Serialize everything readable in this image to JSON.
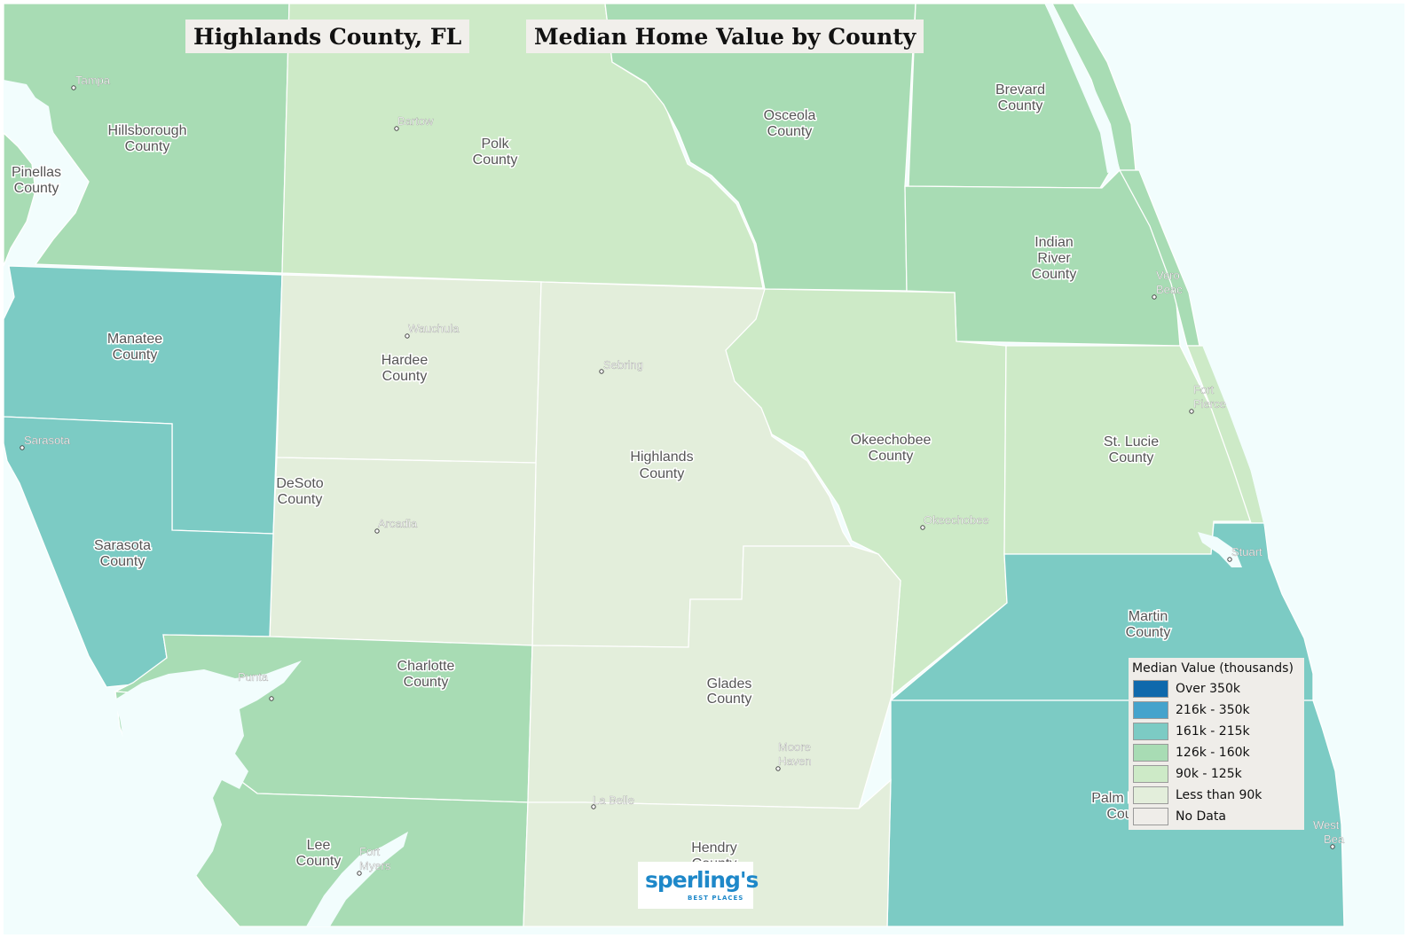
{
  "header": {
    "county_title": "Highlands County, FL",
    "map_title": "Median Home Value by County"
  },
  "legend": {
    "title": "Median Value (thousands)",
    "items": [
      {
        "label": "Over 350k",
        "color": "#0f69ac"
      },
      {
        "label": "216k - 350k",
        "color": "#45a3cc"
      },
      {
        "label": "161k - 215k",
        "color": "#7ccbc4"
      },
      {
        "label": "126k - 160k",
        "color": "#a8dcb4"
      },
      {
        "label": "90k - 125k",
        "color": "#cdeac7"
      },
      {
        "label": "Less than 90k",
        "color": "#e3eedb"
      },
      {
        "label": "No Data",
        "color": "#efede9"
      }
    ]
  },
  "colors": {
    "water": "#f2fdfd",
    "boundary": "#ffffff"
  },
  "counties": {
    "hillsborough": {
      "line1": "Hillsborough",
      "line2": "County"
    },
    "pinellas": {
      "line1": "Pinellas",
      "line2": "County"
    },
    "polk": {
      "line1": "Polk",
      "line2": "County"
    },
    "osceola": {
      "line1": "Osceola",
      "line2": "County"
    },
    "brevard": {
      "line1": "Brevard",
      "line2": "County"
    },
    "indian_river": {
      "line1": "Indian",
      "line2": "River",
      "line3": "County"
    },
    "manatee": {
      "line1": "Manatee",
      "line2": "County"
    },
    "hardee": {
      "line1": "Hardee",
      "line2": "County"
    },
    "highlands": {
      "line1": "Highlands",
      "line2": "County"
    },
    "okeechobee": {
      "line1": "Okeechobee",
      "line2": "County"
    },
    "st_lucie": {
      "line1": "St. Lucie",
      "line2": "County"
    },
    "desoto": {
      "line1": "DeSoto",
      "line2": "County"
    },
    "sarasota": {
      "line1": "Sarasota",
      "line2": "County"
    },
    "martin": {
      "line1": "Martin",
      "line2": "County"
    },
    "charlotte": {
      "line1": "Charlotte",
      "line2": "County"
    },
    "glades": {
      "line1": "Glades",
      "line2": "County"
    },
    "palm_beach": {
      "line1": "Palm B",
      "line2": "Cou"
    },
    "lee": {
      "line1": "Lee",
      "line2": "County"
    },
    "hendry": {
      "line1": "Hendry",
      "line2": "County"
    }
  },
  "cities": {
    "tampa": "Tampa",
    "bartow": "Bartow",
    "wauchula": "Wauchula",
    "sebring": "Sebring",
    "sarasota": "Sarasota",
    "arcadia": "Arcadia",
    "okeechobee": "Okeechobee",
    "vero_1": "Vero",
    "vero_2": "Beac",
    "fort_pierce_1": "Fort",
    "fort_pierce_2": "Pierce",
    "stuart": "Stuart",
    "punta_gorda": "Punta",
    "moore_haven_1": "Moore",
    "moore_haven_2": "Haven",
    "la_belle": "La Belle",
    "fort_myers_1": "Fort",
    "fort_myers_2": "Myers",
    "west_palm_1": "West",
    "west_palm_2": "Bea"
  },
  "logo": {
    "brand": "sperling's",
    "tagline": "BEST PLACES"
  }
}
